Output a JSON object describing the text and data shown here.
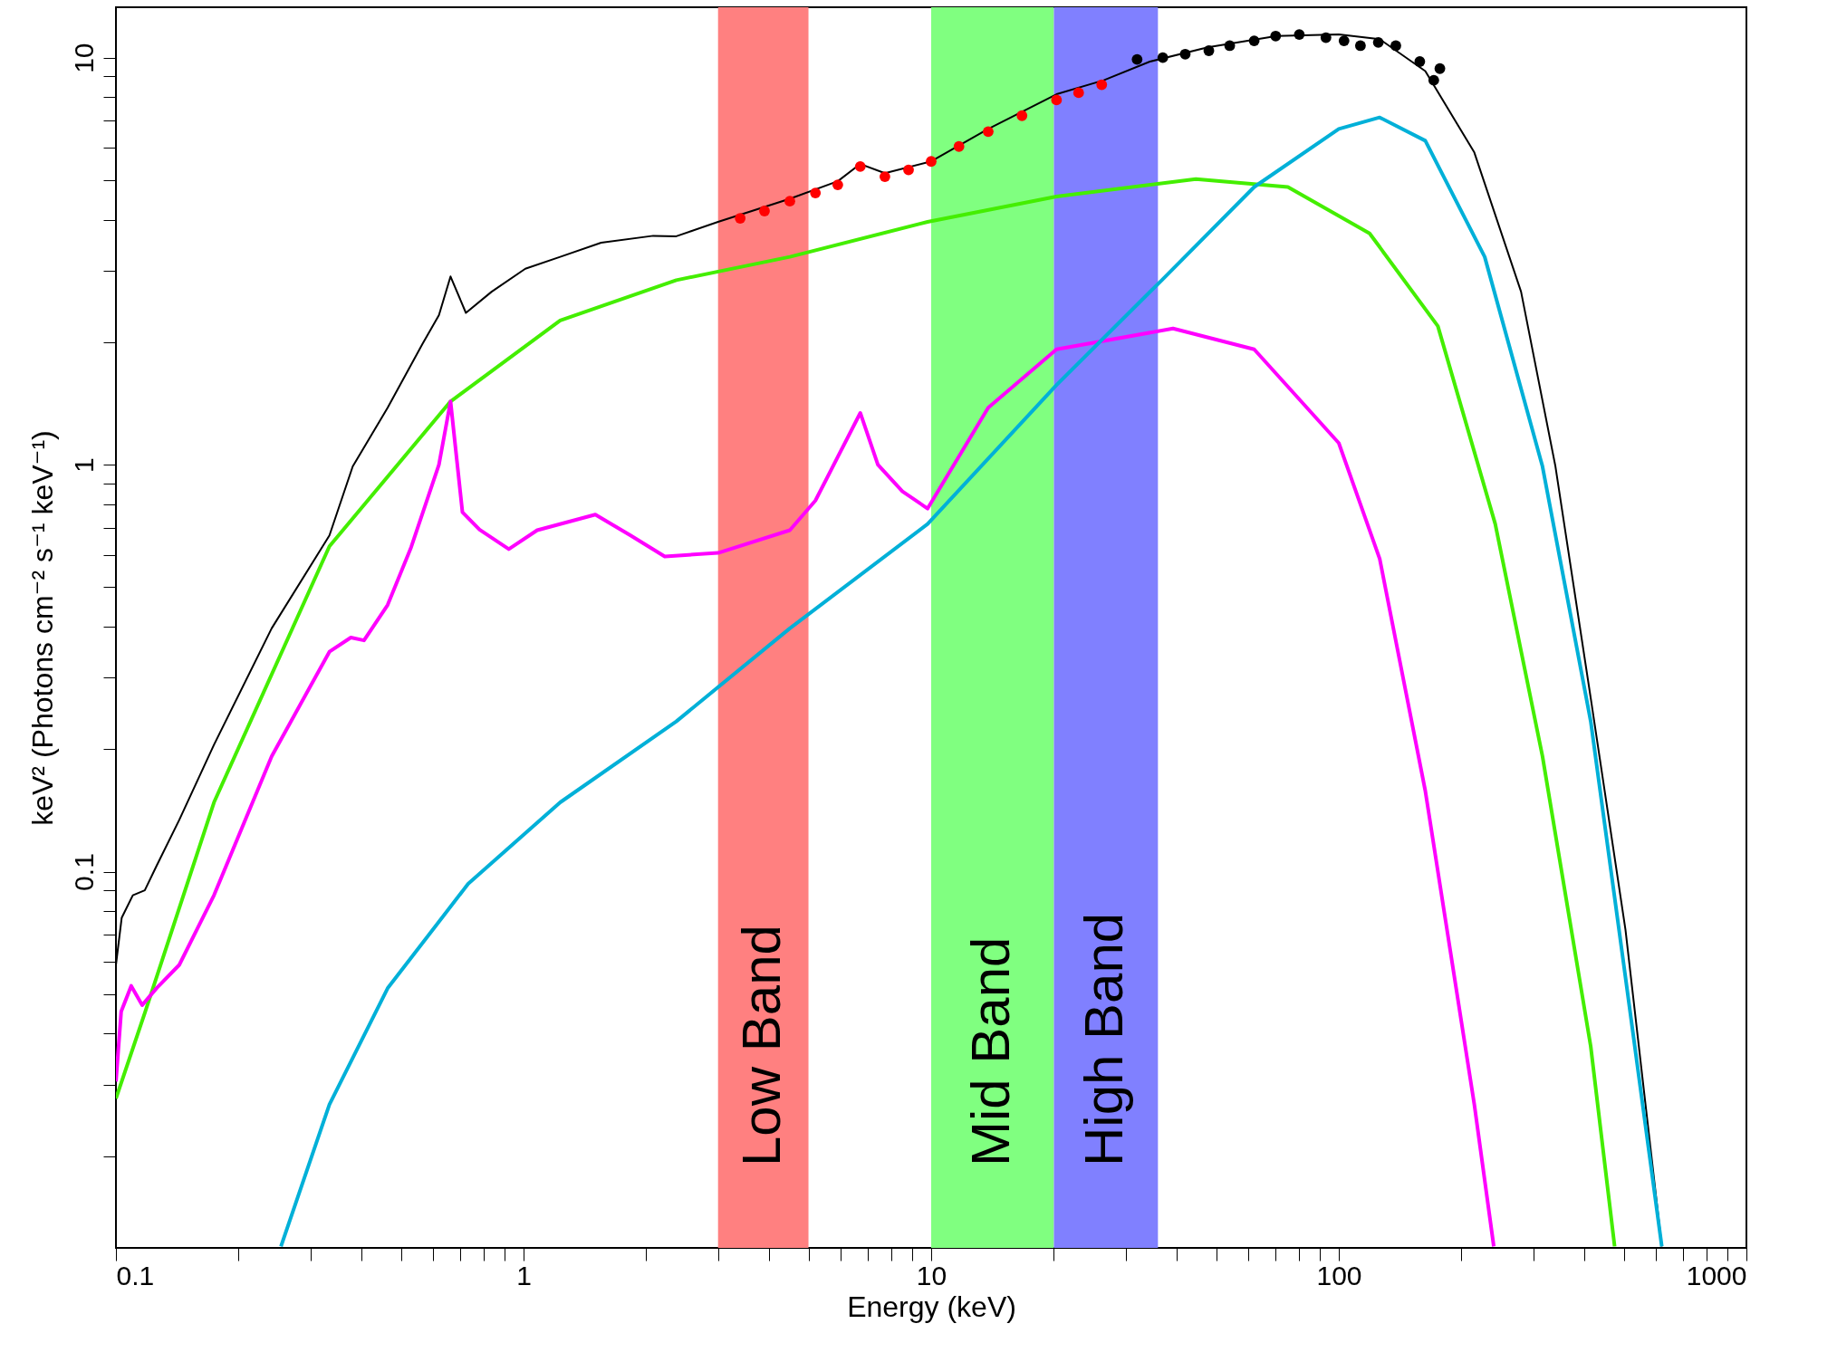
{
  "chart_data": {
    "type": "line",
    "xlabel": "Energy (keV)",
    "ylabel": "keV² (Photons cm⁻² s⁻¹ keV⁻¹)",
    "log": "xy",
    "xlim": [
      0.1,
      1000
    ],
    "ylim": [
      0.0119,
      13.3
    ],
    "xticks": [
      0.1,
      {
        "value": 0.2,
        "label": null
      },
      {
        "value": 0.3,
        "label": null
      },
      {
        "value": 0.4,
        "label": null
      },
      {
        "value": 0.5,
        "label": null
      },
      {
        "value": 0.6,
        "label": null
      },
      {
        "value": 0.7,
        "label": null
      },
      {
        "value": 0.8,
        "label": null
      },
      {
        "value": 0.9,
        "label": null
      },
      1,
      {
        "value": 2,
        "label": null
      },
      {
        "value": 3,
        "label": null
      },
      {
        "value": 4,
        "label": null
      },
      {
        "value": 5,
        "label": null
      },
      {
        "value": 6,
        "label": null
      },
      {
        "value": 7,
        "label": null
      },
      {
        "value": 8,
        "label": null
      },
      {
        "value": 9,
        "label": null
      },
      10,
      {
        "value": 20,
        "label": null
      },
      {
        "value": 30,
        "label": null
      },
      {
        "value": 40,
        "label": null
      },
      {
        "value": 50,
        "label": null
      },
      {
        "value": 60,
        "label": null
      },
      {
        "value": 70,
        "label": null
      },
      {
        "value": 80,
        "label": null
      },
      {
        "value": 90,
        "label": null
      },
      100,
      {
        "value": 200,
        "label": null
      },
      {
        "value": 300,
        "label": null
      },
      {
        "value": 400,
        "label": null
      },
      {
        "value": 500,
        "label": null
      },
      {
        "value": 600,
        "label": null
      },
      {
        "value": 700,
        "label": null
      },
      {
        "value": 800,
        "label": null
      },
      {
        "value": 900,
        "label": null
      },
      1000
    ],
    "yticks": [
      {
        "value": 0.02,
        "label": null
      },
      {
        "value": 0.03,
        "label": null
      },
      {
        "value": 0.04,
        "label": null
      },
      {
        "value": 0.05,
        "label": null
      },
      {
        "value": 0.06,
        "label": null
      },
      {
        "value": 0.07,
        "label": null
      },
      {
        "value": 0.08,
        "label": null
      },
      {
        "value": 0.09,
        "label": null
      },
      0.1,
      {
        "value": 0.2,
        "label": null
      },
      {
        "value": 0.3,
        "label": null
      },
      {
        "value": 0.4,
        "label": null
      },
      {
        "value": 0.5,
        "label": null
      },
      {
        "value": 0.6,
        "label": null
      },
      {
        "value": 0.7,
        "label": null
      },
      {
        "value": 0.8,
        "label": null
      },
      {
        "value": 0.9,
        "label": null
      },
      1,
      {
        "value": 2,
        "label": null
      },
      {
        "value": 3,
        "label": null
      },
      {
        "value": 4,
        "label": null
      },
      {
        "value": 5,
        "label": null
      },
      {
        "value": 6,
        "label": null
      },
      {
        "value": 7,
        "label": null
      },
      {
        "value": 8,
        "label": null
      },
      {
        "value": 9,
        "label": null
      },
      10
    ],
    "bands": [
      {
        "axis": "x",
        "from": 3,
        "to": 5,
        "label": "Low Band",
        "color": "#ff8080"
      },
      {
        "axis": "x",
        "from": 10,
        "to": 20,
        "label": "Mid Band",
        "color": "#80ff80"
      },
      {
        "axis": "x",
        "from": 20,
        "to": 36,
        "label": "High Band",
        "color": "#8080ff"
      }
    ],
    "series": [
      {
        "color": "#000000",
        "x": [
          0.1,
          0.1033,
          0.11,
          0.1177,
          0.1256,
          0.143,
          0.174,
          0.241,
          0.334,
          0.381,
          0.464,
          0.565,
          0.62,
          0.662,
          0.722,
          0.835,
          1.01,
          1.23,
          1.55,
          2.08,
          2.37,
          3.0,
          4.5,
          5.9,
          6.7,
          7.7,
          10,
          13.8,
          20.3,
          26.5,
          34.4,
          47.7,
          70.4,
          100,
          126,
          163,
          215,
          280,
          340,
          415,
          505,
          620
        ],
        "values": [
          0.059,
          0.077,
          0.0875,
          0.09,
          0.103,
          0.134,
          0.205,
          0.396,
          0.67,
          0.99,
          1.38,
          1.98,
          2.33,
          2.9,
          2.36,
          2.66,
          3.03,
          3.24,
          3.51,
          3.65,
          3.64,
          3.95,
          4.5,
          4.97,
          5.48,
          5.2,
          5.56,
          6.68,
          8.13,
          8.8,
          9.78,
          10.6,
          11.3,
          11.4,
          11.1,
          9.27,
          5.85,
          2.66,
          0.99,
          0.267,
          0.072,
          0.012
        ]
      },
      {
        "color": "#44ee00",
        "x": [
          0.1,
          0.118,
          0.174,
          0.334,
          0.662,
          1.23,
          2.37,
          4.5,
          9.8,
          20.3,
          44.6,
          75,
          119,
          175,
          242,
          316,
          415,
          475
        ],
        "values": [
          0.0277,
          0.0453,
          0.148,
          0.63,
          1.43,
          2.26,
          2.84,
          3.24,
          3.95,
          4.56,
          5.03,
          4.81,
          3.7,
          2.19,
          0.715,
          0.192,
          0.0372,
          0.012
        ]
      },
      {
        "color": "#ff00ff",
        "x": [
          0.1,
          0.103,
          0.109,
          0.116,
          0.126,
          0.143,
          0.174,
          0.241,
          0.334,
          0.377,
          0.406,
          0.464,
          0.53,
          0.62,
          0.662,
          0.708,
          0.78,
          0.92,
          1.08,
          1.5,
          1.83,
          2.22,
          3.0,
          4.5,
          5.2,
          6.7,
          7.4,
          8.5,
          9.8,
          13.8,
          20.3,
          39.2,
          62,
          100,
          126,
          163,
          215,
          240
        ],
        "values": [
          0.0305,
          0.0453,
          0.0524,
          0.047,
          0.0518,
          0.059,
          0.0875,
          0.192,
          0.347,
          0.376,
          0.37,
          0.452,
          0.627,
          1.0,
          1.43,
          0.764,
          0.692,
          0.62,
          0.69,
          0.754,
          0.67,
          0.595,
          0.607,
          0.69,
          0.816,
          1.34,
          1.0,
          0.86,
          0.78,
          1.38,
          1.92,
          2.16,
          1.92,
          1.13,
          0.587,
          0.158,
          0.0268,
          0.012
        ]
      },
      {
        "color": "#00b0d8",
        "x": [
          0.254,
          0.334,
          0.464,
          0.731,
          1.23,
          2.37,
          4.5,
          9.8,
          20.3,
          36.8,
          62,
          100,
          126,
          163,
          228,
          316,
          415,
          505,
          620
        ],
        "values": [
          0.012,
          0.0268,
          0.0517,
          0.0933,
          0.148,
          0.234,
          0.396,
          0.715,
          1.57,
          2.84,
          4.81,
          6.68,
          7.13,
          6.25,
          3.24,
          0.99,
          0.234,
          0.055,
          0.012
        ]
      },
      {
        "type": "scatter",
        "marker": "circle",
        "color": "#ff0000",
        "x": [
          3.4,
          3.9,
          4.5,
          5.2,
          5.9,
          6.7,
          7.7,
          8.8,
          10,
          11.7,
          13.8,
          16.7,
          20.3,
          23,
          26.2
        ],
        "values": [
          4.03,
          4.2,
          4.44,
          4.65,
          4.87,
          5.4,
          5.1,
          5.3,
          5.56,
          6.05,
          6.58,
          7.2,
          7.87,
          8.2,
          8.58
        ]
      },
      {
        "type": "scatter",
        "marker": "circle",
        "color": "#000000",
        "x": [
          32,
          37,
          42,
          48,
          54,
          62,
          70,
          80,
          93,
          103,
          113,
          125,
          138,
          158,
          171,
          177
        ],
        "values": [
          9.9,
          10.0,
          10.2,
          10.4,
          10.7,
          11.0,
          11.3,
          11.4,
          11.2,
          11.0,
          10.7,
          10.9,
          10.7,
          9.78,
          8.8,
          9.4
        ]
      }
    ]
  }
}
